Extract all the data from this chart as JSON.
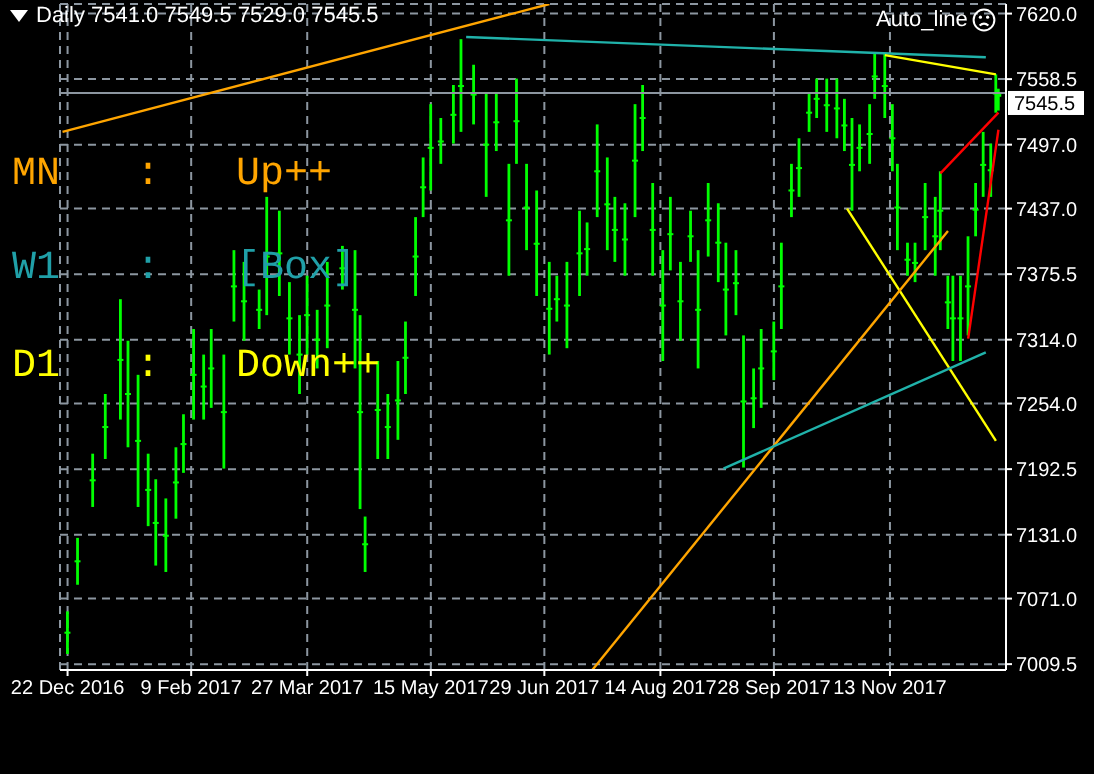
{
  "chart_data": {
    "type": "candlestick",
    "title": "Daily 7541.0 7549.5 7529.0 7545.5",
    "annotations": [
      "MN : Up++",
      "W1 : [Box]",
      "D1 : Down++",
      "Auto_line"
    ],
    "color": "#00ff00",
    "grid": true,
    "xlim": [
      "2016-12-19",
      "2017-12-29"
    ],
    "xticks": [
      {
        "value": "2016-12-22",
        "label": "22 Dec 2016"
      },
      {
        "value": "2017-02-09",
        "label": "9 Feb 2017"
      },
      {
        "value": "2017-03-27",
        "label": "27 Mar 2017"
      },
      {
        "value": "2017-05-15",
        "label": "15 May 2017"
      },
      {
        "value": "2017-06-29",
        "label": "29 Jun 2017"
      },
      {
        "value": "2017-08-14",
        "label": "14 Aug 2017"
      },
      {
        "value": "2017-09-28",
        "label": "28 Sep 2017"
      },
      {
        "value": "2017-11-13",
        "label": "13 Nov 2017"
      }
    ],
    "ylim": [
      7004,
      7629
    ],
    "yticks": [
      {
        "value": 7620,
        "label": "7620.0"
      },
      7558.5,
      {
        "value": 7497,
        "label": "7497.0"
      },
      {
        "value": 7437,
        "label": "7437.0"
      },
      7375.5,
      {
        "value": 7314,
        "label": "7314.0"
      },
      {
        "value": 7254,
        "label": "7254.0"
      },
      7192.5,
      {
        "value": 7131,
        "label": "7131.0"
      },
      {
        "value": 7071,
        "label": "7071.0"
      },
      7009.5
    ],
    "ref_lines": [
      {
        "axis": "y",
        "value": 7545.5,
        "label": "7545.5",
        "color": "#8c96a0"
      }
    ],
    "x": [
      "2016-12-22",
      "2016-12-26",
      "2017-01-01",
      "2017-01-06",
      "2017-01-12",
      "2017-01-15",
      "2017-01-19",
      "2017-01-23",
      "2017-01-26",
      "2017-01-30",
      "2017-02-03",
      "2017-02-06",
      "2017-02-10",
      "2017-02-14",
      "2017-02-17",
      "2017-02-22",
      "2017-02-26",
      "2017-03-02",
      "2017-03-08",
      "2017-03-11",
      "2017-03-16",
      "2017-03-20",
      "2017-03-24",
      "2017-03-27",
      "2017-03-31",
      "2017-04-04",
      "2017-04-10",
      "2017-04-15",
      "2017-04-17",
      "2017-04-19",
      "2017-04-24",
      "2017-04-28",
      "2017-05-02",
      "2017-05-05",
      "2017-05-09",
      "2017-05-12",
      "2017-05-15",
      "2017-05-19",
      "2017-05-24",
      "2017-05-27",
      "2017-06-01",
      "2017-06-06",
      "2017-06-10",
      "2017-06-15",
      "2017-06-18",
      "2017-06-22",
      "2017-06-26",
      "2017-07-01",
      "2017-07-04",
      "2017-07-08",
      "2017-07-13",
      "2017-07-16",
      "2017-07-20",
      "2017-07-24",
      "2017-07-27",
      "2017-07-31",
      "2017-08-04",
      "2017-08-07",
      "2017-08-11",
      "2017-08-15",
      "2017-08-18",
      "2017-08-22",
      "2017-08-26",
      "2017-08-29",
      "2017-09-02",
      "2017-09-06",
      "2017-09-09",
      "2017-09-13",
      "2017-09-16",
      "2017-09-20",
      "2017-09-23",
      "2017-09-28",
      "2017-10-01",
      "2017-10-05",
      "2017-10-08",
      "2017-10-12",
      "2017-10-15",
      "2017-10-19",
      "2017-10-23",
      "2017-10-26",
      "2017-10-29",
      "2017-11-01",
      "2017-11-05",
      "2017-11-07",
      "2017-11-11",
      "2017-11-14",
      "2017-11-16",
      "2017-11-20",
      "2017-11-23",
      "2017-11-27",
      "2017-12-01",
      "2017-12-03",
      "2017-12-06",
      "2017-12-08",
      "2017-12-11",
      "2017-12-14",
      "2017-12-17",
      "2017-12-20",
      "2017-12-23",
      "2017-12-25",
      "2017-12-26"
    ],
    "ohlc": [
      [
        7039,
        7059,
        7019,
        7039
      ],
      [
        7106,
        7128,
        7084,
        7106
      ],
      [
        7182,
        7207,
        7157,
        7182
      ],
      [
        7232,
        7263,
        7202,
        7232
      ],
      [
        7295,
        7352,
        7239,
        7295
      ],
      [
        7263,
        7313,
        7213,
        7263
      ],
      [
        7219,
        7281,
        7157,
        7219
      ],
      [
        7173,
        7207,
        7139,
        7173
      ],
      [
        7142,
        7183,
        7102,
        7142
      ],
      [
        7130,
        7165,
        7096,
        7130
      ],
      [
        7180,
        7213,
        7146,
        7180
      ],
      [
        7216,
        7244,
        7189,
        7216
      ],
      [
        7281,
        7324,
        7239,
        7281
      ],
      [
        7270,
        7300,
        7239,
        7270
      ],
      [
        7287,
        7324,
        7250,
        7287
      ],
      [
        7246,
        7300,
        7193,
        7246
      ],
      [
        7364,
        7398,
        7331,
        7364
      ],
      [
        7350,
        7387,
        7313,
        7350
      ],
      [
        7342,
        7361,
        7324,
        7342
      ],
      [
        7392,
        7448,
        7337,
        7392
      ],
      [
        7395,
        7435,
        7355,
        7395
      ],
      [
        7334,
        7368,
        7300,
        7334
      ],
      [
        7300,
        7337,
        7263,
        7300
      ],
      [
        7337,
        7374,
        7300,
        7337
      ],
      [
        7314,
        7342,
        7287,
        7314
      ],
      [
        7346,
        7387,
        7306,
        7346
      ],
      [
        7381,
        7402,
        7361,
        7381
      ],
      [
        7342,
        7398,
        7287,
        7342
      ],
      [
        7246,
        7337,
        7155,
        7246
      ],
      [
        7122,
        7148,
        7096,
        7122
      ],
      [
        7248,
        7294,
        7202,
        7248
      ],
      [
        7232,
        7263,
        7202,
        7232
      ],
      [
        7257,
        7294,
        7220,
        7257
      ],
      [
        7297,
        7331,
        7263,
        7297
      ],
      [
        7392,
        7429,
        7355,
        7392
      ],
      [
        7457,
        7485,
        7429,
        7457
      ],
      [
        7494,
        7535,
        7454,
        7494
      ],
      [
        7500,
        7522,
        7479,
        7500
      ],
      [
        7525,
        7553,
        7498,
        7525
      ],
      [
        7552,
        7596,
        7509,
        7552
      ],
      [
        7544,
        7572,
        7516,
        7544
      ],
      [
        7497,
        7546,
        7448,
        7497
      ],
      [
        7518,
        7546,
        7491,
        7518
      ],
      [
        7426,
        7479,
        7374,
        7426
      ],
      [
        7519,
        7559,
        7479,
        7519
      ],
      [
        7438,
        7479,
        7398,
        7438
      ],
      [
        7404,
        7454,
        7355,
        7404
      ],
      [
        7343,
        7387,
        7300,
        7343
      ],
      [
        7352,
        7374,
        7331,
        7352
      ],
      [
        7346,
        7387,
        7306,
        7346
      ],
      [
        7395,
        7435,
        7355,
        7395
      ],
      [
        7399,
        7424,
        7374,
        7399
      ],
      [
        7472,
        7516,
        7429,
        7472
      ],
      [
        7441,
        7485,
        7398,
        7441
      ],
      [
        7417,
        7448,
        7387,
        7417
      ],
      [
        7408,
        7442,
        7374,
        7408
      ],
      [
        7482,
        7535,
        7429,
        7482
      ],
      [
        7522,
        7553,
        7491,
        7522
      ],
      [
        7417,
        7461,
        7374,
        7417
      ],
      [
        7346,
        7398,
        7294,
        7346
      ],
      [
        7413,
        7448,
        7379,
        7413
      ],
      [
        7350,
        7387,
        7313,
        7350
      ],
      [
        7411,
        7435,
        7387,
        7411
      ],
      [
        7342,
        7398,
        7287,
        7342
      ],
      [
        7426,
        7461,
        7392,
        7426
      ],
      [
        7405,
        7442,
        7368,
        7405
      ],
      [
        7361,
        7405,
        7318,
        7361
      ],
      [
        7367,
        7398,
        7337,
        7367
      ],
      [
        7256,
        7318,
        7194,
        7256
      ],
      [
        7259,
        7287,
        7231,
        7259
      ],
      [
        7287,
        7324,
        7250,
        7287
      ],
      [
        7303,
        7331,
        7276,
        7303
      ],
      [
        7364,
        7405,
        7324,
        7364
      ],
      [
        7454,
        7479,
        7429,
        7454
      ],
      [
        7475,
        7503,
        7448,
        7475
      ],
      [
        7527,
        7546,
        7509,
        7527
      ],
      [
        7540,
        7559,
        7522,
        7540
      ],
      [
        7534,
        7559,
        7509,
        7534
      ],
      [
        7531,
        7559,
        7503,
        7531
      ],
      [
        7515,
        7540,
        7491,
        7515
      ],
      [
        7478,
        7522,
        7435,
        7478
      ],
      [
        7494,
        7516,
        7472,
        7494
      ],
      [
        7507,
        7535,
        7479,
        7507
      ],
      [
        7561,
        7583,
        7540,
        7561
      ],
      [
        7552,
        7583,
        7522,
        7552
      ],
      [
        7503,
        7535,
        7472,
        7503
      ],
      [
        7438,
        7479,
        7398,
        7438
      ],
      [
        7389,
        7405,
        7374,
        7389
      ],
      [
        7386,
        7405,
        7368,
        7386
      ],
      [
        7429,
        7461,
        7398,
        7429
      ],
      [
        7411,
        7448,
        7374,
        7411
      ],
      [
        7435,
        7472,
        7398,
        7435
      ],
      [
        7349,
        7374,
        7324,
        7349
      ],
      [
        7334,
        7374,
        7294,
        7334
      ],
      [
        7334,
        7374,
        7294,
        7334
      ],
      [
        7364,
        7411,
        7318,
        7364
      ],
      [
        7436,
        7461,
        7411,
        7436
      ],
      [
        7478,
        7509,
        7448,
        7478
      ],
      [
        7473,
        7498,
        7448,
        7473
      ],
      [
        7545,
        7563,
        7527,
        7545
      ],
      [
        7541,
        7549.5,
        7529,
        7545.5
      ]
    ],
    "series": [
      {
        "type": "line",
        "color": "#ffa500",
        "x": [
          "2016-12-20",
          "2017-07-01"
        ],
        "values": [
          7509,
          7629
        ]
      },
      {
        "type": "line",
        "color": "#20b2aa",
        "x": [
          "2017-05-29",
          "2017-12-21"
        ],
        "values": [
          7598,
          7579
        ]
      },
      {
        "type": "line",
        "color": "#ffff00",
        "x": [
          "2017-11-11",
          "2017-12-25"
        ],
        "values": [
          7581,
          7563
        ]
      },
      {
        "type": "line",
        "color": "#ffff00",
        "x": [
          "2017-10-27",
          "2017-12-25"
        ],
        "values": [
          7437,
          7219
        ]
      },
      {
        "type": "line",
        "color": "#ffa500",
        "x": [
          "2017-07-18",
          "2017-12-06"
        ],
        "values": [
          7004,
          7416
        ]
      },
      {
        "type": "line",
        "color": "#20b2aa",
        "x": [
          "2017-09-08",
          "2017-12-21"
        ],
        "values": [
          7193,
          7302
        ]
      },
      {
        "type": "line",
        "color": "#ff0000",
        "x": [
          "2017-12-03",
          "2017-12-26"
        ],
        "values": [
          7470,
          7527
        ]
      },
      {
        "type": "line",
        "color": "#ff0000",
        "x": [
          "2017-12-14",
          "2017-12-26"
        ],
        "values": [
          7315,
          7511
        ]
      }
    ]
  }
}
